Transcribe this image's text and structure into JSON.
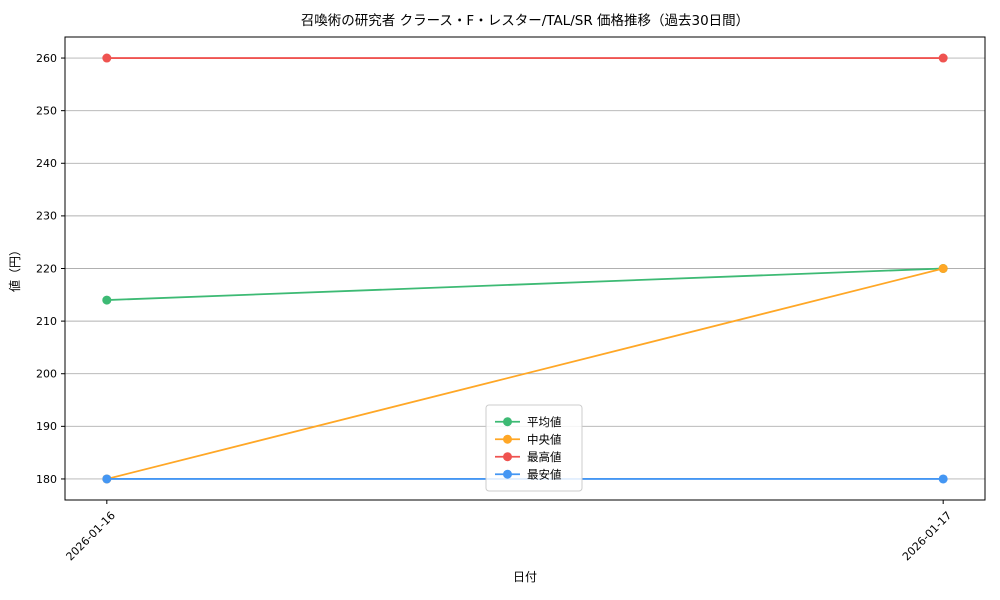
{
  "figure": {
    "background": "#ffffff",
    "axes_edge_color": "#000000",
    "grid_color": "#b0b0b0"
  },
  "chart_data": {
    "type": "line",
    "title": "召喚術の研究者 クラース・F・レスター/TAL/SR 価格推移（過去30日間）",
    "xlabel": "日付",
    "ylabel": "値（円）",
    "categories": [
      "2026-01-16",
      "2026-01-17"
    ],
    "series": [
      {
        "name": "平均値",
        "color": "#3dba74",
        "values": [
          214,
          220
        ]
      },
      {
        "name": "中央値",
        "color": "#ffa726",
        "values": [
          180,
          220
        ]
      },
      {
        "name": "最高値",
        "color": "#ef5350",
        "values": [
          260,
          260
        ]
      },
      {
        "name": "最安値",
        "color": "#4496f3",
        "values": [
          180,
          180
        ]
      }
    ],
    "yticks": [
      180,
      190,
      200,
      210,
      220,
      230,
      240,
      250,
      260
    ],
    "ylim": [
      176,
      264
    ],
    "x_margin": 0.05,
    "grid": true,
    "legend": {
      "position": "lower center",
      "labels": [
        "平均値",
        "中央値",
        "最高値",
        "最安値"
      ]
    }
  }
}
